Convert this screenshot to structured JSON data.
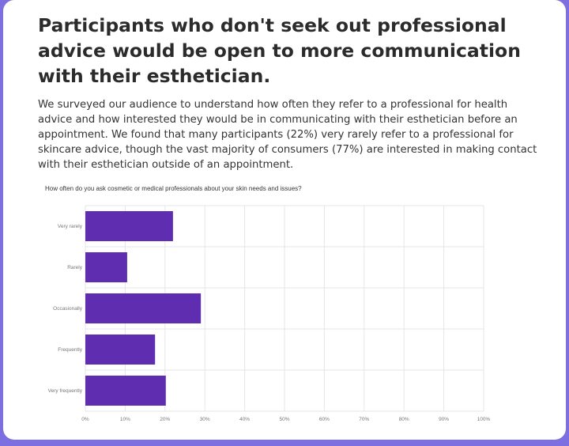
{
  "headline": "Participants who don't seek out professional advice would be open to more communication with their esthetician.",
  "body": "We surveyed our audience to understand how often they refer to a professional for health advice and how interested they would be in communicating with their esthetician before an appointment. We found that many participants (22%) very rarely refer to a professional for skincare advice, though the vast majority of consumers (77%) are interested in making contact with their esthetician outside of an appointment.",
  "chart_data": {
    "type": "bar",
    "orientation": "horizontal",
    "title": "How often do you ask cosmetic or medical professionals about your skin needs and issues?",
    "categories": [
      "Very rarely",
      "Rarely",
      "Occasionally",
      "Frequently",
      "Very frequently"
    ],
    "values": [
      22,
      10.5,
      29,
      17.5,
      20.2
    ],
    "x_ticks": [
      "0%",
      "10%",
      "20%",
      "30%",
      "40%",
      "50%",
      "60%",
      "70%",
      "80%",
      "90%",
      "100%"
    ],
    "xlim": [
      0,
      100
    ],
    "grid": true,
    "bar_color": "#5f2eb0"
  }
}
